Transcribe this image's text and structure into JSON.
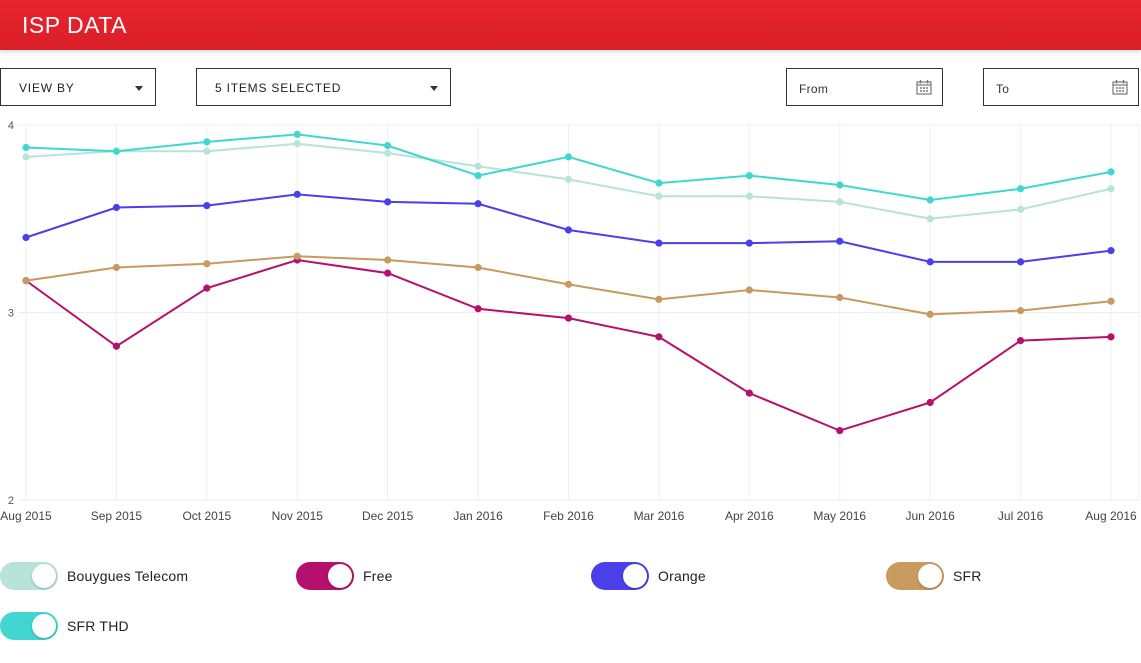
{
  "header": {
    "title": "ISP DATA"
  },
  "controls": {
    "view_by": "VIEW BY",
    "items_selected": "5 ITEMS SELECTED",
    "from": "From",
    "to": "To"
  },
  "chart_data": {
    "type": "line",
    "title": "",
    "xlabel": "",
    "ylabel": "",
    "ylim": [
      2,
      4
    ],
    "yticks": [
      "4",
      "3",
      "2"
    ],
    "categories": [
      "Aug 2015",
      "Sep 2015",
      "Oct 2015",
      "Nov 2015",
      "Dec 2015",
      "Jan 2016",
      "Feb 2016",
      "Mar 2016",
      "Apr 2016",
      "May 2016",
      "Jun 2016",
      "Jul 2016",
      "Aug 2016"
    ],
    "series": [
      {
        "name": "Bouygues Telecom",
        "color": "#b7e3d8",
        "values": [
          3.83,
          3.86,
          3.86,
          3.9,
          3.85,
          3.78,
          3.71,
          3.62,
          3.62,
          3.59,
          3.5,
          3.55,
          3.66
        ]
      },
      {
        "name": "Free",
        "color": "#b5106e",
        "values": [
          3.17,
          2.82,
          3.13,
          3.28,
          3.21,
          3.02,
          2.97,
          2.87,
          2.57,
          2.37,
          2.52,
          2.85,
          2.87
        ]
      },
      {
        "name": "Orange",
        "color": "#4a3fe8",
        "values": [
          3.4,
          3.56,
          3.57,
          3.63,
          3.59,
          3.58,
          3.44,
          3.37,
          3.37,
          3.38,
          3.27,
          3.27,
          3.33
        ]
      },
      {
        "name": "SFR",
        "color": "#c99a5e",
        "values": [
          3.17,
          3.24,
          3.26,
          3.3,
          3.28,
          3.24,
          3.15,
          3.07,
          3.12,
          3.08,
          2.99,
          3.01,
          3.06
        ]
      },
      {
        "name": "SFR THD",
        "color": "#41d6d2",
        "values": [
          3.88,
          3.86,
          3.91,
          3.95,
          3.89,
          3.73,
          3.83,
          3.69,
          3.73,
          3.68,
          3.6,
          3.66,
          3.75
        ]
      }
    ],
    "grid": true,
    "legend": "bottom"
  }
}
